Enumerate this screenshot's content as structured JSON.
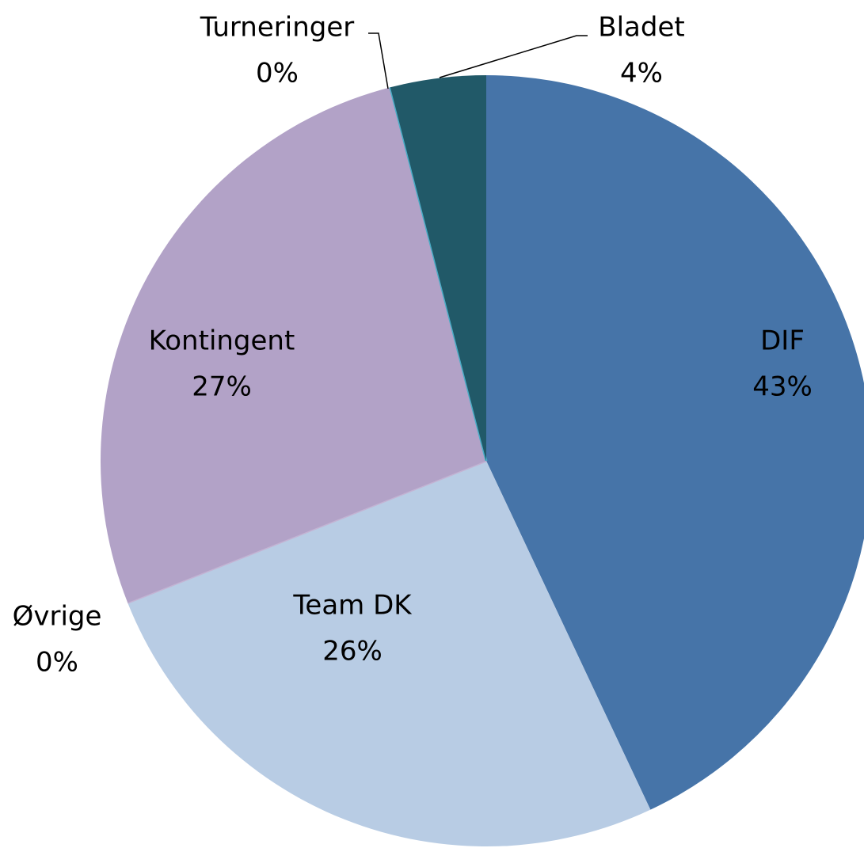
{
  "chart_data": {
    "type": "pie",
    "categories": [
      "DIF",
      "Team DK",
      "Øvrige",
      "Kontingent",
      "Turneringer",
      "Bladet"
    ],
    "values": [
      43,
      26,
      0,
      27,
      0,
      4
    ],
    "value_labels": [
      "43%",
      "26%",
      "0%",
      "27%",
      "0%",
      "4%"
    ],
    "colors": [
      "#4674a8",
      "#b8cce4",
      "#c3b3d3",
      "#b2a2c7",
      "#4bacc6",
      "#215968"
    ]
  }
}
